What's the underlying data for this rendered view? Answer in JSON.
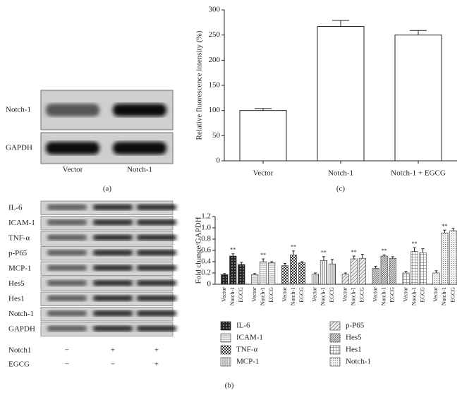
{
  "blot_a": {
    "rows": [
      "Notch-1",
      "GAPDH"
    ],
    "lanes": [
      "Vector",
      "Notch-1"
    ],
    "label": "(a)"
  },
  "blot_b": {
    "rows": [
      "IL-6",
      "ICAM-1",
      "TNF-α",
      "p-P65",
      "MCP-1",
      "Hes5",
      "Hes1",
      "Notch-1",
      "GAPDH"
    ],
    "treatments": [
      {
        "name": "Notch1",
        "signs": [
          "−",
          "+",
          "+"
        ]
      },
      {
        "name": "EGCG",
        "signs": [
          "−",
          "−",
          "+"
        ]
      }
    ],
    "label": "(b)"
  },
  "chart_data": [
    {
      "type": "bar",
      "label": "(c)",
      "ylabel": "Relative fluorescence intensity (%)",
      "categories": [
        "Vector",
        "Notch-1",
        "Notch-1 + EGCG"
      ],
      "values": [
        100,
        267,
        250
      ],
      "errors": [
        4,
        12,
        9
      ],
      "color": "#ffffff",
      "ylim": [
        0,
        300
      ],
      "yticks": [
        0,
        50,
        100,
        150,
        200,
        250,
        300
      ]
    },
    {
      "type": "bar",
      "ylabel": "Fold change/GAPDH",
      "annotation": "**",
      "categories": [
        "Vector",
        "Notch-1",
        "EGCG"
      ],
      "series": [
        {
          "name": "IL-6",
          "color": "#111111",
          "values": [
            0.17,
            0.5,
            0.35
          ],
          "errors": [
            0.02,
            0.04,
            0.04
          ]
        },
        {
          "name": "ICAM-1",
          "color": "#333333",
          "values": [
            0.17,
            0.4,
            0.38
          ],
          "errors": [
            0.02,
            0.05,
            0.02
          ]
        },
        {
          "name": "TNF-α",
          "color": "#333333",
          "values": [
            0.33,
            0.52,
            0.38
          ],
          "errors": [
            0.04,
            0.07,
            0.02
          ]
        },
        {
          "name": "MCP-1",
          "color": "#333333",
          "values": [
            0.18,
            0.42,
            0.36
          ],
          "errors": [
            0.02,
            0.07,
            0.08
          ]
        },
        {
          "name": "p-P65",
          "color": "#333333",
          "values": [
            0.18,
            0.45,
            0.46
          ],
          "errors": [
            0.02,
            0.05,
            0.07
          ]
        },
        {
          "name": "Hes5",
          "color": "#333333",
          "values": [
            0.28,
            0.5,
            0.46
          ],
          "errors": [
            0.04,
            0.02,
            0.03
          ]
        },
        {
          "name": "Hes1",
          "color": "#333333",
          "values": [
            0.2,
            0.58,
            0.56
          ],
          "errors": [
            0.03,
            0.07,
            0.07
          ]
        },
        {
          "name": "Notch-1",
          "color": "#333333",
          "values": [
            0.2,
            0.91,
            0.95
          ],
          "errors": [
            0.04,
            0.05,
            0.04
          ]
        }
      ],
      "ylim": [
        0,
        1.2
      ],
      "yticks": [
        0,
        0.2,
        0.4,
        0.6,
        0.8,
        {
          "value": 1,
          "label": "1.0"
        },
        1.2
      ]
    }
  ]
}
